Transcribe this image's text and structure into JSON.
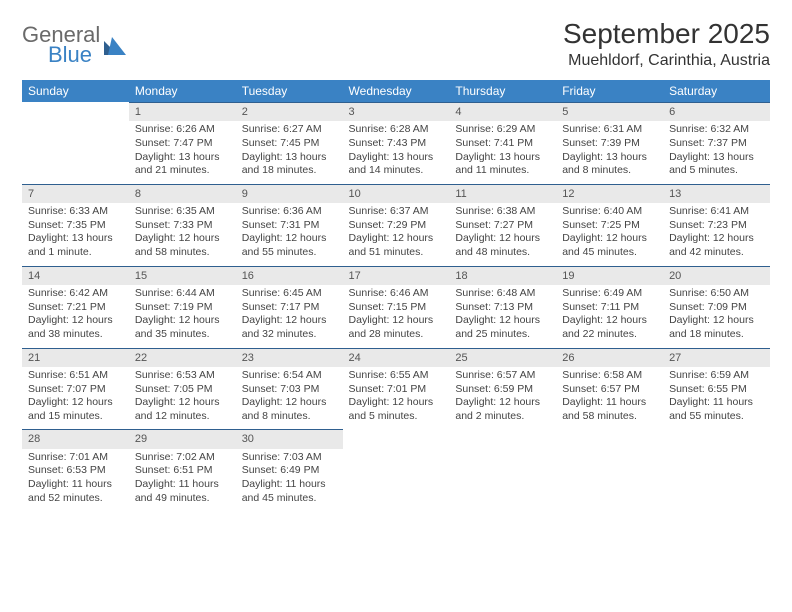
{
  "logo": {
    "text1": "General",
    "text2": "Blue",
    "color_gray": "#6a6a6a",
    "color_blue": "#3a82c4"
  },
  "title": "September 2025",
  "subtitle": "Muehldorf, Carinthia, Austria",
  "colors": {
    "header_bg": "#3a82c4",
    "header_text": "#ffffff",
    "daynum_bg": "#e9e9e9",
    "daynum_border": "#2f5f8f",
    "body_bg": "#ffffff",
    "text": "#444444"
  },
  "fonts": {
    "title_size": 28,
    "subtitle_size": 16,
    "th_size": 12,
    "cell_size": 10.5
  },
  "day_headers": [
    "Sunday",
    "Monday",
    "Tuesday",
    "Wednesday",
    "Thursday",
    "Friday",
    "Saturday"
  ],
  "weeks": [
    [
      null,
      {
        "n": "1",
        "sr": "Sunrise: 6:26 AM",
        "ss": "Sunset: 7:47 PM",
        "dl": "Daylight: 13 hours and 21 minutes."
      },
      {
        "n": "2",
        "sr": "Sunrise: 6:27 AM",
        "ss": "Sunset: 7:45 PM",
        "dl": "Daylight: 13 hours and 18 minutes."
      },
      {
        "n": "3",
        "sr": "Sunrise: 6:28 AM",
        "ss": "Sunset: 7:43 PM",
        "dl": "Daylight: 13 hours and 14 minutes."
      },
      {
        "n": "4",
        "sr": "Sunrise: 6:29 AM",
        "ss": "Sunset: 7:41 PM",
        "dl": "Daylight: 13 hours and 11 minutes."
      },
      {
        "n": "5",
        "sr": "Sunrise: 6:31 AM",
        "ss": "Sunset: 7:39 PM",
        "dl": "Daylight: 13 hours and 8 minutes."
      },
      {
        "n": "6",
        "sr": "Sunrise: 6:32 AM",
        "ss": "Sunset: 7:37 PM",
        "dl": "Daylight: 13 hours and 5 minutes."
      }
    ],
    [
      {
        "n": "7",
        "sr": "Sunrise: 6:33 AM",
        "ss": "Sunset: 7:35 PM",
        "dl": "Daylight: 13 hours and 1 minute."
      },
      {
        "n": "8",
        "sr": "Sunrise: 6:35 AM",
        "ss": "Sunset: 7:33 PM",
        "dl": "Daylight: 12 hours and 58 minutes."
      },
      {
        "n": "9",
        "sr": "Sunrise: 6:36 AM",
        "ss": "Sunset: 7:31 PM",
        "dl": "Daylight: 12 hours and 55 minutes."
      },
      {
        "n": "10",
        "sr": "Sunrise: 6:37 AM",
        "ss": "Sunset: 7:29 PM",
        "dl": "Daylight: 12 hours and 51 minutes."
      },
      {
        "n": "11",
        "sr": "Sunrise: 6:38 AM",
        "ss": "Sunset: 7:27 PM",
        "dl": "Daylight: 12 hours and 48 minutes."
      },
      {
        "n": "12",
        "sr": "Sunrise: 6:40 AM",
        "ss": "Sunset: 7:25 PM",
        "dl": "Daylight: 12 hours and 45 minutes."
      },
      {
        "n": "13",
        "sr": "Sunrise: 6:41 AM",
        "ss": "Sunset: 7:23 PM",
        "dl": "Daylight: 12 hours and 42 minutes."
      }
    ],
    [
      {
        "n": "14",
        "sr": "Sunrise: 6:42 AM",
        "ss": "Sunset: 7:21 PM",
        "dl": "Daylight: 12 hours and 38 minutes."
      },
      {
        "n": "15",
        "sr": "Sunrise: 6:44 AM",
        "ss": "Sunset: 7:19 PM",
        "dl": "Daylight: 12 hours and 35 minutes."
      },
      {
        "n": "16",
        "sr": "Sunrise: 6:45 AM",
        "ss": "Sunset: 7:17 PM",
        "dl": "Daylight: 12 hours and 32 minutes."
      },
      {
        "n": "17",
        "sr": "Sunrise: 6:46 AM",
        "ss": "Sunset: 7:15 PM",
        "dl": "Daylight: 12 hours and 28 minutes."
      },
      {
        "n": "18",
        "sr": "Sunrise: 6:48 AM",
        "ss": "Sunset: 7:13 PM",
        "dl": "Daylight: 12 hours and 25 minutes."
      },
      {
        "n": "19",
        "sr": "Sunrise: 6:49 AM",
        "ss": "Sunset: 7:11 PM",
        "dl": "Daylight: 12 hours and 22 minutes."
      },
      {
        "n": "20",
        "sr": "Sunrise: 6:50 AM",
        "ss": "Sunset: 7:09 PM",
        "dl": "Daylight: 12 hours and 18 minutes."
      }
    ],
    [
      {
        "n": "21",
        "sr": "Sunrise: 6:51 AM",
        "ss": "Sunset: 7:07 PM",
        "dl": "Daylight: 12 hours and 15 minutes."
      },
      {
        "n": "22",
        "sr": "Sunrise: 6:53 AM",
        "ss": "Sunset: 7:05 PM",
        "dl": "Daylight: 12 hours and 12 minutes."
      },
      {
        "n": "23",
        "sr": "Sunrise: 6:54 AM",
        "ss": "Sunset: 7:03 PM",
        "dl": "Daylight: 12 hours and 8 minutes."
      },
      {
        "n": "24",
        "sr": "Sunrise: 6:55 AM",
        "ss": "Sunset: 7:01 PM",
        "dl": "Daylight: 12 hours and 5 minutes."
      },
      {
        "n": "25",
        "sr": "Sunrise: 6:57 AM",
        "ss": "Sunset: 6:59 PM",
        "dl": "Daylight: 12 hours and 2 minutes."
      },
      {
        "n": "26",
        "sr": "Sunrise: 6:58 AM",
        "ss": "Sunset: 6:57 PM",
        "dl": "Daylight: 11 hours and 58 minutes."
      },
      {
        "n": "27",
        "sr": "Sunrise: 6:59 AM",
        "ss": "Sunset: 6:55 PM",
        "dl": "Daylight: 11 hours and 55 minutes."
      }
    ],
    [
      {
        "n": "28",
        "sr": "Sunrise: 7:01 AM",
        "ss": "Sunset: 6:53 PM",
        "dl": "Daylight: 11 hours and 52 minutes."
      },
      {
        "n": "29",
        "sr": "Sunrise: 7:02 AM",
        "ss": "Sunset: 6:51 PM",
        "dl": "Daylight: 11 hours and 49 minutes."
      },
      {
        "n": "30",
        "sr": "Sunrise: 7:03 AM",
        "ss": "Sunset: 6:49 PM",
        "dl": "Daylight: 11 hours and 45 minutes."
      },
      null,
      null,
      null,
      null
    ]
  ]
}
